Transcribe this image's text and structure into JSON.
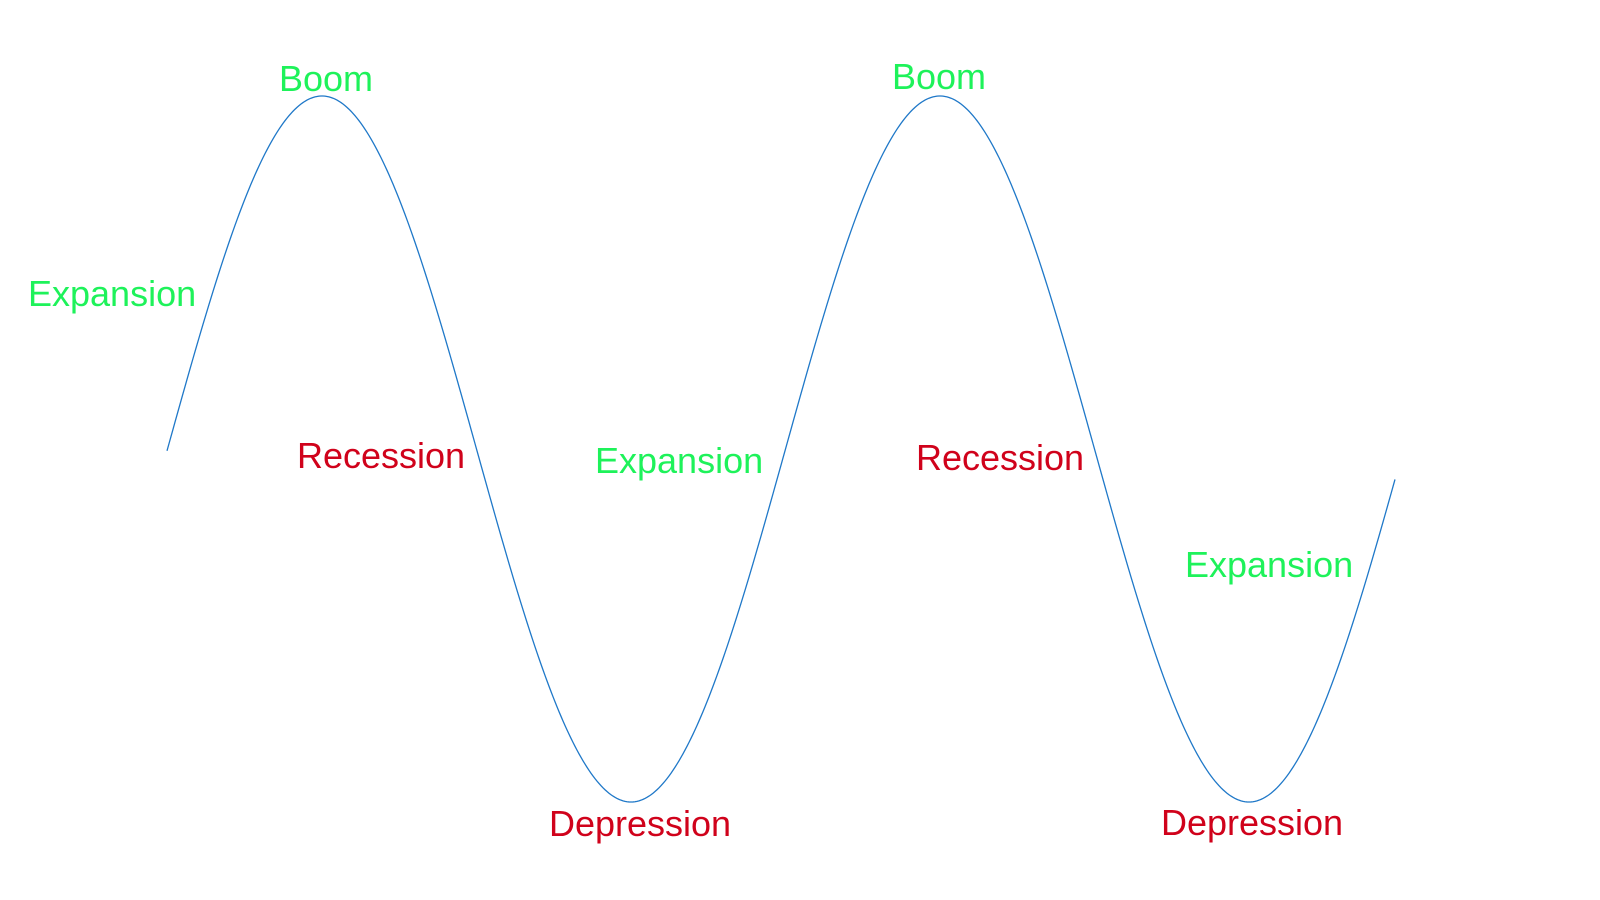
{
  "colors": {
    "background": "#ffffff",
    "curve": "#1f78c8",
    "growth_phase": "#1ef25a",
    "decline_phase": "#d0021b"
  },
  "labels": [
    {
      "id": "expansion-1",
      "text": "Expansion",
      "phase": "growth"
    },
    {
      "id": "boom-1",
      "text": "Boom",
      "phase": "growth"
    },
    {
      "id": "recession-1",
      "text": "Recession",
      "phase": "decline"
    },
    {
      "id": "depression-1",
      "text": "Depression",
      "phase": "decline"
    },
    {
      "id": "expansion-2",
      "text": "Expansion",
      "phase": "growth"
    },
    {
      "id": "boom-2",
      "text": "Boom",
      "phase": "growth"
    },
    {
      "id": "recession-2",
      "text": "Recession",
      "phase": "decline"
    },
    {
      "id": "depression-2",
      "text": "Depression",
      "phase": "decline"
    },
    {
      "id": "expansion-3",
      "text": "Expansion",
      "phase": "growth"
    }
  ]
}
